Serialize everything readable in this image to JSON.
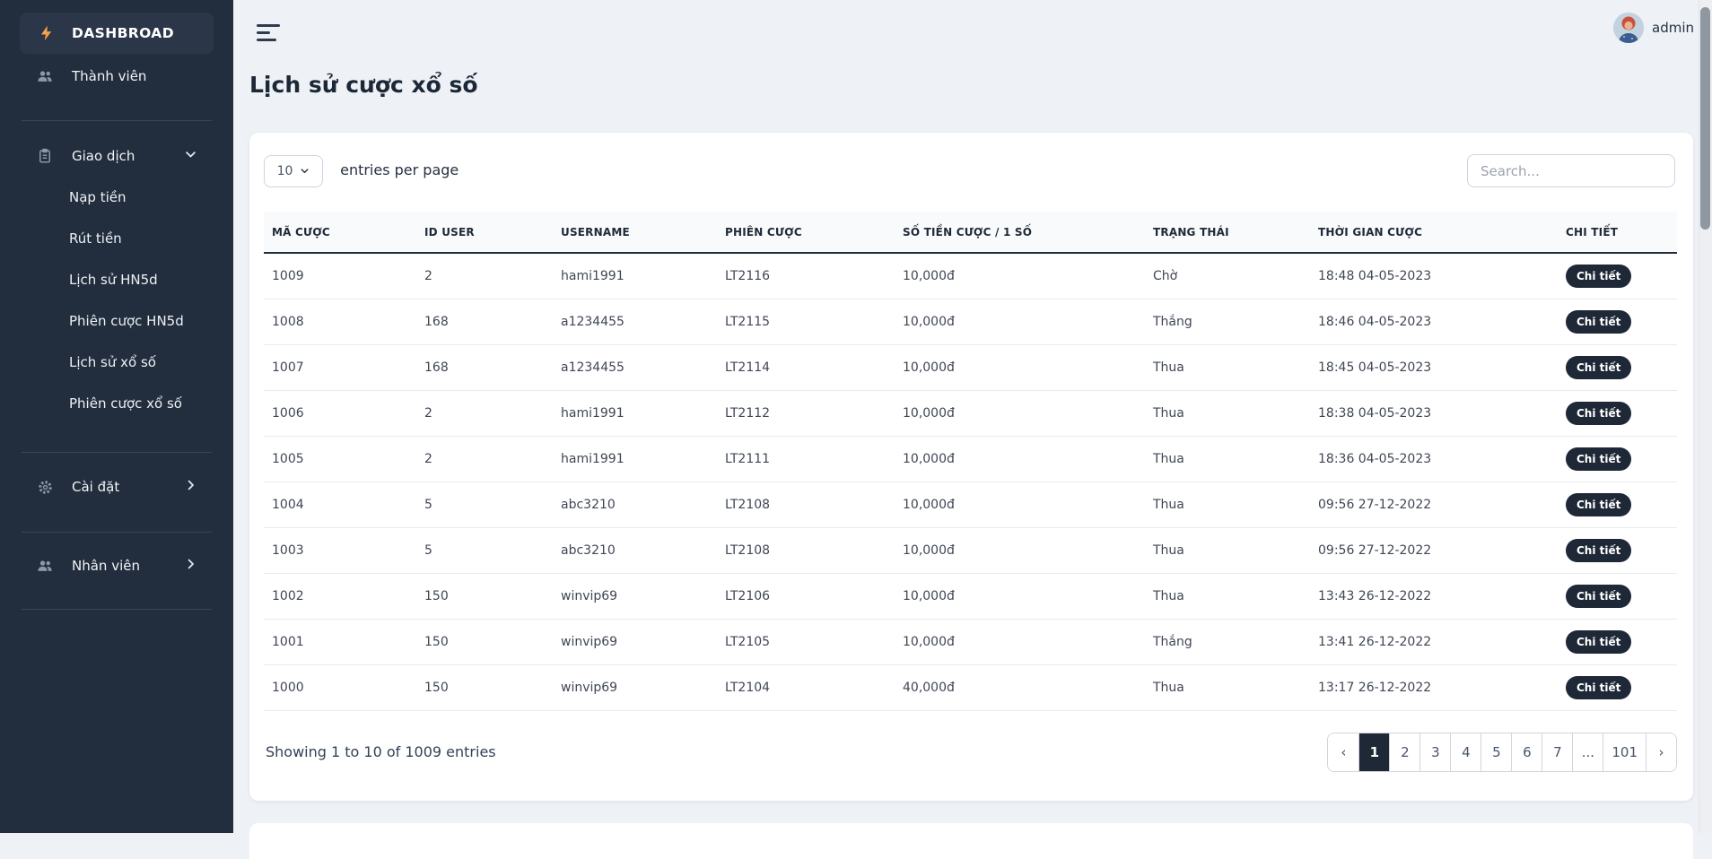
{
  "colors": {
    "sidebar_bg": "#222d3d",
    "sidebar_active_bg": "#2b3649",
    "accent_dark": "#1e2836",
    "bolt_orange": "#f59f4b",
    "page_bg": "#eef1f6"
  },
  "sidebar": {
    "brand": {
      "label": "DASHBROAD",
      "icon": "lightning-icon"
    },
    "member_item": {
      "label": "Thành viên",
      "icon": "users-icon"
    },
    "transactions_group": {
      "label": "Giao dịch",
      "icon": "clipboard-icon"
    },
    "transactions_items": [
      {
        "label": "Nạp tiền"
      },
      {
        "label": "Rút tiền"
      },
      {
        "label": "Lịch sử HN5d"
      },
      {
        "label": "Phiên cược HN5d"
      },
      {
        "label": "Lịch sử xổ số"
      },
      {
        "label": "Phiên cược xổ số"
      }
    ],
    "settings_item": {
      "label": "Cài đặt",
      "icon": "gear-icon"
    },
    "staff_item": {
      "label": "Nhân viên",
      "icon": "users-icon"
    }
  },
  "topbar": {
    "username": "admin"
  },
  "page": {
    "title": "Lịch sử cược xổ số"
  },
  "table_card": {
    "entries_per_page_value": "10",
    "entries_per_page_label": "entries per page",
    "search_placeholder": "Search...",
    "columns": [
      {
        "key": "bet_id",
        "label": "MÃ CƯỢC"
      },
      {
        "key": "user_id",
        "label": "ID USER"
      },
      {
        "key": "username",
        "label": "USERNAME"
      },
      {
        "key": "session",
        "label": "PHIÊN CƯỢC"
      },
      {
        "key": "amount",
        "label": "SỐ TIỀN CƯỢC / 1 SỐ"
      },
      {
        "key": "status",
        "label": "TRẠNG THÁI"
      },
      {
        "key": "time",
        "label": "THỜI GIAN CƯỢC"
      },
      {
        "key": "detail",
        "label": "CHI TIẾT"
      }
    ],
    "detail_button_label": "Chi tiết",
    "rows": [
      {
        "bet_id": "1009",
        "user_id": "2",
        "username": "hami1991",
        "session": "LT2116",
        "amount": "10,000đ",
        "status": "Chờ",
        "time": "18:48 04-05-2023"
      },
      {
        "bet_id": "1008",
        "user_id": "168",
        "username": "a1234455",
        "session": "LT2115",
        "amount": "10,000đ",
        "status": "Thắng",
        "time": "18:46 04-05-2023"
      },
      {
        "bet_id": "1007",
        "user_id": "168",
        "username": "a1234455",
        "session": "LT2114",
        "amount": "10,000đ",
        "status": "Thua",
        "time": "18:45 04-05-2023"
      },
      {
        "bet_id": "1006",
        "user_id": "2",
        "username": "hami1991",
        "session": "LT2112",
        "amount": "10,000đ",
        "status": "Thua",
        "time": "18:38 04-05-2023"
      },
      {
        "bet_id": "1005",
        "user_id": "2",
        "username": "hami1991",
        "session": "LT2111",
        "amount": "10,000đ",
        "status": "Thua",
        "time": "18:36 04-05-2023"
      },
      {
        "bet_id": "1004",
        "user_id": "5",
        "username": "abc3210",
        "session": "LT2108",
        "amount": "10,000đ",
        "status": "Thua",
        "time": "09:56 27-12-2022"
      },
      {
        "bet_id": "1003",
        "user_id": "5",
        "username": "abc3210",
        "session": "LT2108",
        "amount": "10,000đ",
        "status": "Thua",
        "time": "09:56 27-12-2022"
      },
      {
        "bet_id": "1002",
        "user_id": "150",
        "username": "winvip69",
        "session": "LT2106",
        "amount": "10,000đ",
        "status": "Thua",
        "time": "13:43 26-12-2022"
      },
      {
        "bet_id": "1001",
        "user_id": "150",
        "username": "winvip69",
        "session": "LT2105",
        "amount": "10,000đ",
        "status": "Thắng",
        "time": "13:41 26-12-2022"
      },
      {
        "bet_id": "1000",
        "user_id": "150",
        "username": "winvip69",
        "session": "LT2104",
        "amount": "40,000đ",
        "status": "Thua",
        "time": "13:17 26-12-2022"
      }
    ],
    "footer_text": "Showing 1 to 10 of 1009 entries",
    "pagination": {
      "prev": "‹",
      "next": "›",
      "pages": [
        "1",
        "2",
        "3",
        "4",
        "5",
        "6",
        "7",
        "...",
        "101"
      ],
      "active_page": "1"
    }
  }
}
